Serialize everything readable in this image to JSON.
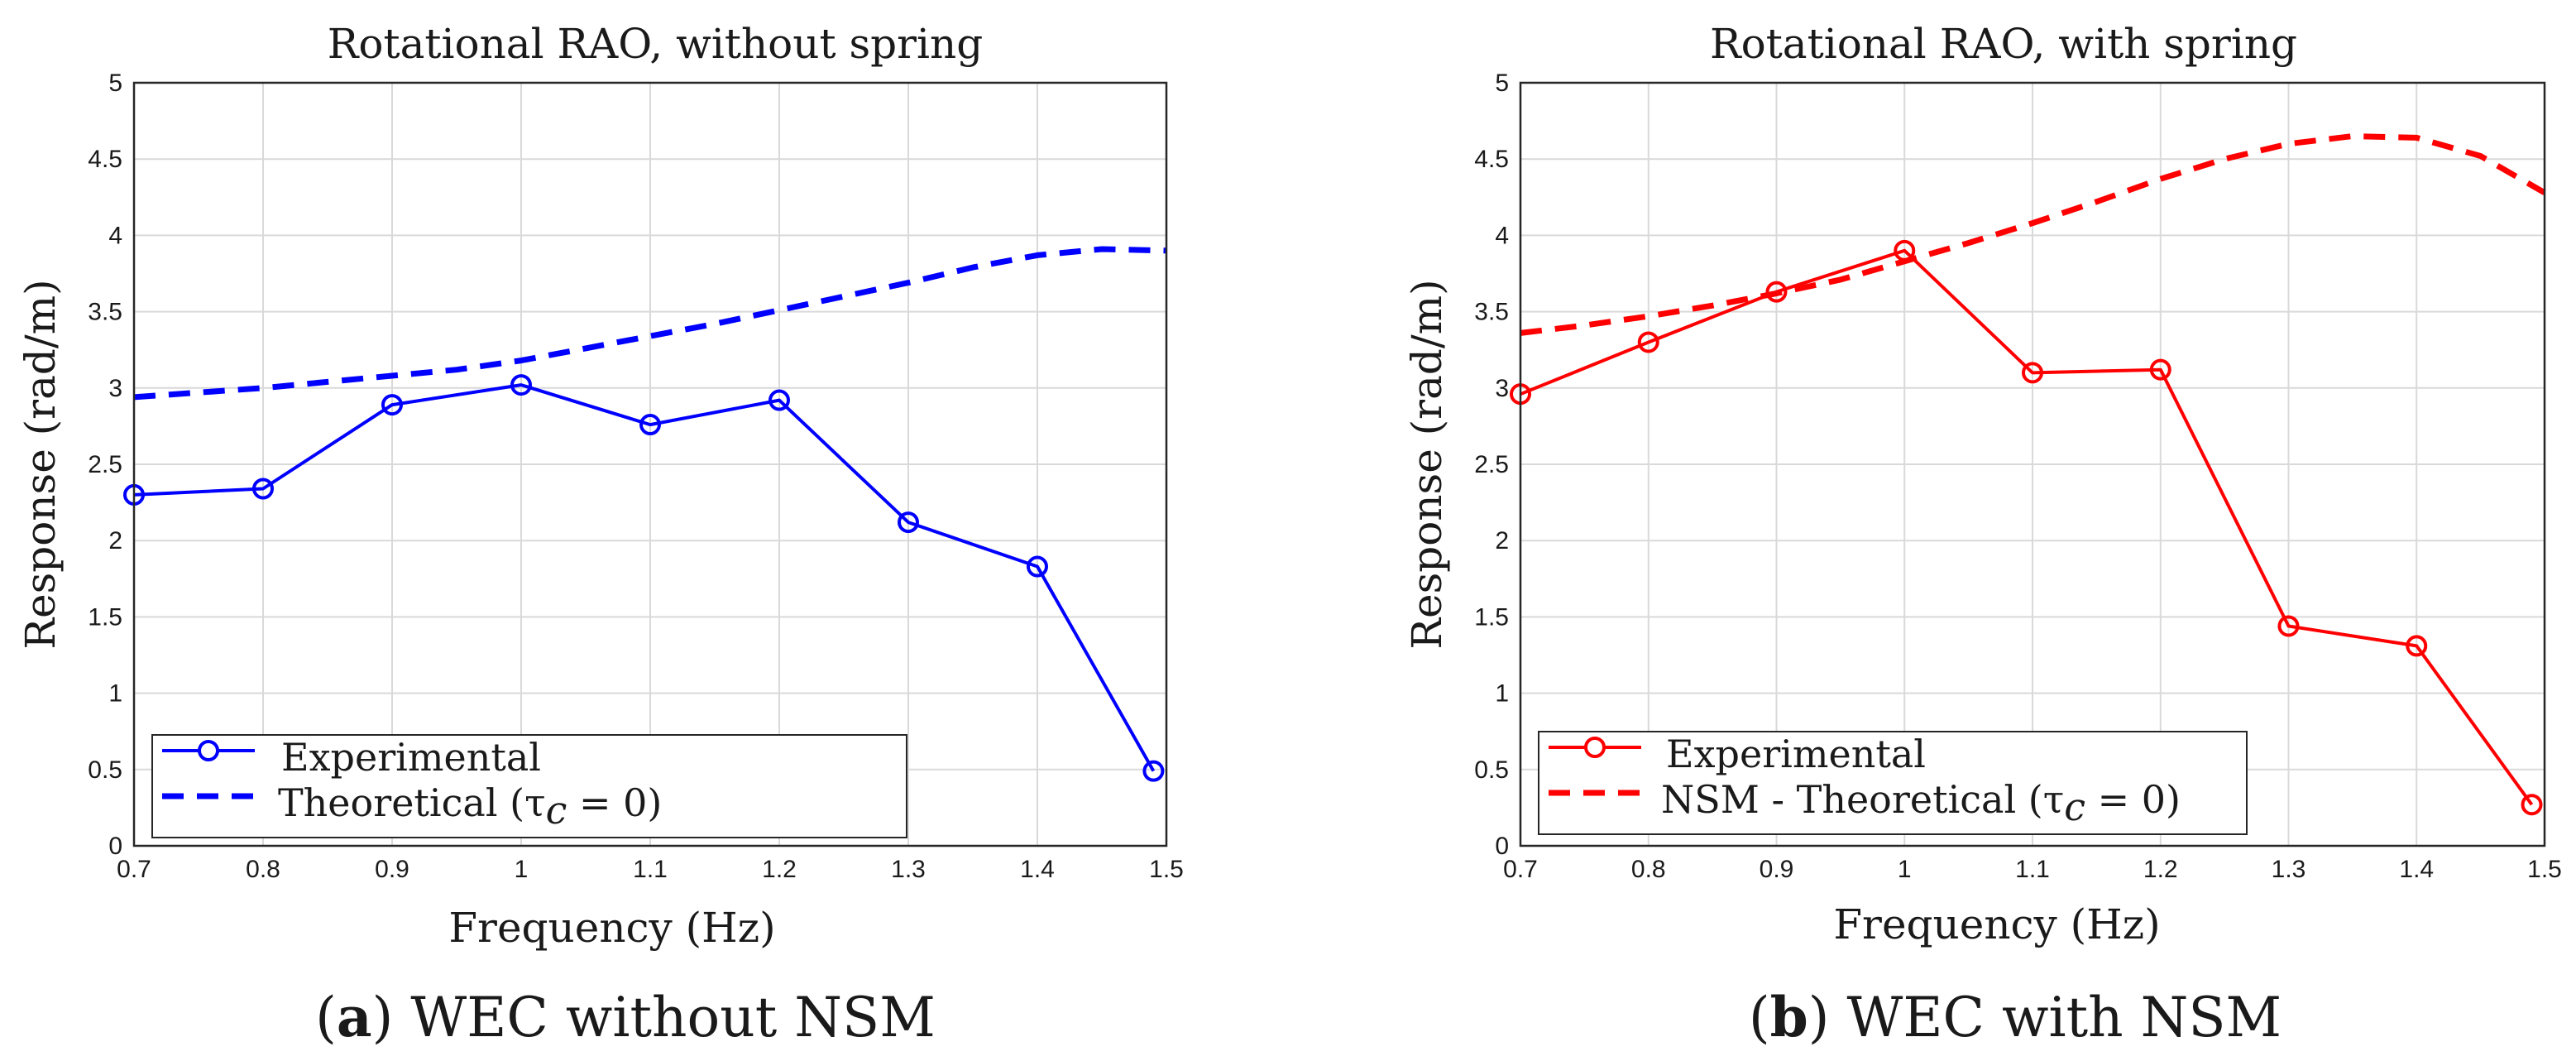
{
  "chart_data": [
    {
      "type": "line",
      "title": "Rotational RAO, without spring",
      "xlabel": "Frequency (Hz)",
      "ylabel": "Response (rad/m)",
      "xlim": [
        0.7,
        1.5
      ],
      "ylim": [
        0,
        5
      ],
      "grid": true,
      "xticks": [
        "0.7",
        "0.8",
        "0.9",
        "1",
        "1.1",
        "1.2",
        "1.3",
        "1.4",
        "1.5"
      ],
      "yticks": [
        "0",
        "0.5",
        "1",
        "1.5",
        "2",
        "2.5",
        "3",
        "3.5",
        "4",
        "4.5",
        "5"
      ],
      "legend_position": "bottom-left",
      "series": [
        {
          "name": "Experimental",
          "legend_label": "Experimental",
          "legend_subscript": "",
          "legend_suffix": "",
          "style": "solid-circle",
          "color": "#0000ff",
          "x": [
            0.7,
            0.8,
            0.9,
            1.0,
            1.1,
            1.2,
            1.3,
            1.4,
            1.49
          ],
          "y": [
            2.3,
            2.34,
            2.89,
            3.02,
            2.76,
            2.92,
            2.12,
            1.83,
            0.49
          ]
        },
        {
          "name": "Theoretical",
          "legend_label": "Theoretical (τ",
          "legend_subscript": "c",
          "legend_suffix": " = 0)",
          "style": "dashed",
          "color": "#0000ff",
          "x": [
            0.7,
            0.75,
            0.8,
            0.85,
            0.9,
            0.95,
            1.0,
            1.05,
            1.1,
            1.15,
            1.2,
            1.25,
            1.3,
            1.35,
            1.4,
            1.45,
            1.5
          ],
          "y": [
            2.94,
            2.97,
            3.0,
            3.04,
            3.08,
            3.12,
            3.18,
            3.26,
            3.34,
            3.42,
            3.51,
            3.6,
            3.69,
            3.79,
            3.87,
            3.91,
            3.9
          ]
        }
      ]
    },
    {
      "type": "line",
      "title": "Rotational RAO, with spring",
      "xlabel": "Frequency (Hz)",
      "ylabel": "Response (rad/m)",
      "xlim": [
        0.7,
        1.5
      ],
      "ylim": [
        0,
        5
      ],
      "grid": true,
      "xticks": [
        "0.7",
        "0.8",
        "0.9",
        "1",
        "1.1",
        "1.2",
        "1.3",
        "1.4",
        "1.5"
      ],
      "yticks": [
        "0",
        "0.5",
        "1",
        "1.5",
        "2",
        "2.5",
        "3",
        "3.5",
        "4",
        "4.5",
        "5"
      ],
      "legend_position": "bottom-left",
      "series": [
        {
          "name": "Experimental",
          "legend_label": "Experimental",
          "legend_subscript": "",
          "legend_suffix": "",
          "style": "solid-circle",
          "color": "#ff0000",
          "x": [
            0.7,
            0.8,
            0.9,
            1.0,
            1.1,
            1.2,
            1.3,
            1.4,
            1.49
          ],
          "y": [
            2.96,
            3.3,
            3.63,
            3.9,
            3.1,
            3.12,
            1.44,
            1.31,
            0.27
          ]
        },
        {
          "name": "NSM - Theoretical",
          "legend_label": "NSM - Theoretical (τ",
          "legend_subscript": "c",
          "legend_suffix": " = 0)",
          "style": "dashed",
          "color": "#ff0000",
          "x": [
            0.7,
            0.75,
            0.8,
            0.85,
            0.9,
            0.95,
            1.0,
            1.05,
            1.1,
            1.15,
            1.2,
            1.25,
            1.3,
            1.35,
            1.4,
            1.45,
            1.5
          ],
          "y": [
            3.36,
            3.41,
            3.47,
            3.54,
            3.62,
            3.71,
            3.83,
            3.95,
            4.08,
            4.22,
            4.37,
            4.5,
            4.6,
            4.65,
            4.64,
            4.52,
            4.28
          ]
        }
      ]
    }
  ],
  "captions": [
    {
      "label": "a",
      "text": "WEC without NSM"
    },
    {
      "label": "b",
      "text": "WEC with NSM"
    }
  ]
}
